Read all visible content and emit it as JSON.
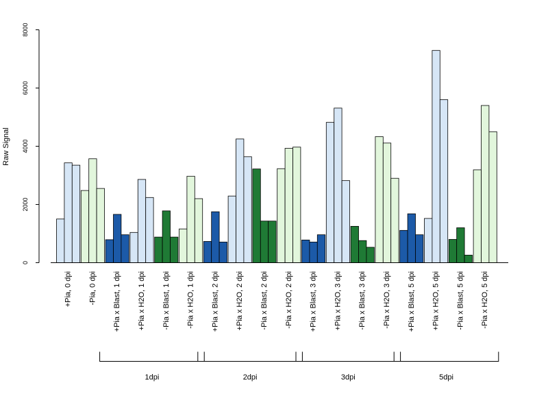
{
  "chart_data": {
    "type": "bar",
    "ylabel": "Raw Signal",
    "ylim": [
      0,
      8000
    ],
    "yticks": [
      0,
      2000,
      4000,
      6000,
      8000
    ],
    "grid": false,
    "legend": "none",
    "categories": [
      {
        "label": "+Pia, 0 dpi",
        "values": [
          1500,
          3430,
          3350
        ],
        "color": "#d6e6f6"
      },
      {
        "label": "-Pia, 0 dpi",
        "values": [
          2480,
          3570,
          2550
        ],
        "color": "#e2f6dc"
      },
      {
        "label": "+Pia x Blast, 1 dpi",
        "values": [
          790,
          1660,
          960
        ],
        "color": "#1c5aa8"
      },
      {
        "label": "+Pia x H2O, 1 dpi",
        "values": [
          1040,
          2860,
          2240
        ],
        "color": "#d6e6f6"
      },
      {
        "label": "-Pia x Blast, 1 dpi",
        "values": [
          880,
          1780,
          880
        ],
        "color": "#1f7a35"
      },
      {
        "label": "-Pia x H2O, 1 dpi",
        "values": [
          1160,
          2970,
          2200
        ],
        "color": "#e2f6dc"
      },
      {
        "label": "+Pia x Blast, 2 dpi",
        "values": [
          730,
          1750,
          710
        ],
        "color": "#1c5aa8"
      },
      {
        "label": "+Pia x H2O, 2 dpi",
        "values": [
          2290,
          4250,
          3640
        ],
        "color": "#d6e6f6"
      },
      {
        "label": "-Pia x Blast, 2 dpi",
        "values": [
          3220,
          1430,
          1430
        ],
        "color": "#1f7a35"
      },
      {
        "label": "-Pia x H2O, 2 dpi",
        "values": [
          3230,
          3930,
          3970
        ],
        "color": "#e2f6dc"
      },
      {
        "label": "+Pia x Blast, 3 dpi",
        "values": [
          780,
          710,
          960
        ],
        "color": "#1c5aa8"
      },
      {
        "label": "+Pia x H2O, 3 dpi",
        "values": [
          4820,
          5310,
          2820
        ],
        "color": "#d6e6f6"
      },
      {
        "label": "-Pia x Blast, 3 dpi",
        "values": [
          1250,
          760,
          530
        ],
        "color": "#1f7a35"
      },
      {
        "label": "-Pia x H2O, 3 dpi",
        "values": [
          4330,
          4110,
          2900
        ],
        "color": "#e2f6dc"
      },
      {
        "label": "+Pia x Blast, 5 dpi",
        "values": [
          1110,
          1680,
          960
        ],
        "color": "#1c5aa8"
      },
      {
        "label": "+Pia x H2O, 5 dpi",
        "values": [
          1520,
          7290,
          5600
        ],
        "color": "#d6e6f6"
      },
      {
        "label": "-Pia x Blast, 5 dpi",
        "values": [
          800,
          1200,
          260
        ],
        "color": "#1f7a35"
      },
      {
        "label": "-Pia x H2O, 5 dpi",
        "values": [
          3190,
          5400,
          4500
        ],
        "color": "#e2f6dc"
      }
    ],
    "groups": [
      {
        "label": "1dpi",
        "from": 2,
        "to": 5
      },
      {
        "label": "2dpi",
        "from": 6,
        "to": 9
      },
      {
        "label": "3dpi",
        "from": 10,
        "to": 13
      },
      {
        "label": "5dpi",
        "from": 14,
        "to": 17
      }
    ]
  }
}
